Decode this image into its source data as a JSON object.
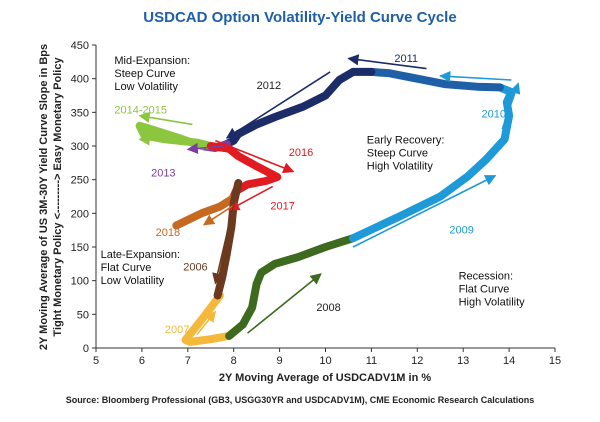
{
  "chart_data": {
    "type": "line",
    "title": "USDCAD Option Volatility-Yield Curve Cycle",
    "xlabel": "2Y Moving Average of USDCADV1M in %",
    "ylabel_line1": "2Y Moving Average of US 3M-30Y Yield Curve Slope in Bps",
    "ylabel_line2": "Tight Monetary Policy <---------> Easy Monetary Policy",
    "xlim": [
      5,
      15
    ],
    "ylim": [
      0,
      450
    ],
    "x_ticks": [
      "5",
      "6",
      "7",
      "8",
      "9",
      "10",
      "11",
      "12",
      "13",
      "14",
      "15"
    ],
    "y_ticks": [
      "0",
      "50",
      "100",
      "150",
      "200",
      "250",
      "300",
      "350",
      "400",
      "450"
    ],
    "source": "Source: Bloomberg Professional (GB3, USGG30YR and USDCADV1M), CME Economic Research Calculations",
    "series": [
      {
        "name": "2007",
        "color": "#f4b93a",
        "points": [
          [
            7.7,
            78
          ],
          [
            7.5,
            60
          ],
          [
            7.3,
            42
          ],
          [
            7.1,
            25
          ],
          [
            6.95,
            12
          ],
          [
            7.05,
            9
          ],
          [
            7.5,
            13
          ],
          [
            7.9,
            18
          ]
        ]
      },
      {
        "name": "2008",
        "color": "#3d6a1e",
        "points": [
          [
            7.9,
            18
          ],
          [
            8.2,
            35
          ],
          [
            8.4,
            60
          ],
          [
            8.5,
            95
          ],
          [
            8.6,
            112
          ],
          [
            8.9,
            125
          ],
          [
            9.4,
            135
          ],
          [
            10.0,
            150
          ],
          [
            10.6,
            163
          ]
        ]
      },
      {
        "name": "2009",
        "color": "#1e9ad8",
        "points": [
          [
            10.6,
            163
          ],
          [
            11.6,
            195
          ],
          [
            12.5,
            225
          ],
          [
            13.1,
            255
          ],
          [
            13.5,
            280
          ],
          [
            13.9,
            310
          ],
          [
            14.0,
            345
          ],
          [
            13.95,
            365
          ],
          [
            14.05,
            380
          ],
          [
            13.8,
            387
          ]
        ]
      },
      {
        "name": "2010",
        "color": "#1f5fa8",
        "points": [
          [
            13.8,
            387
          ],
          [
            13.3,
            388
          ],
          [
            12.6,
            392
          ],
          [
            12.0,
            400
          ],
          [
            11.4,
            408
          ],
          [
            11.0,
            410
          ]
        ]
      },
      {
        "name": "2011",
        "color": "#1b2c68",
        "points": [
          [
            11.0,
            410
          ],
          [
            10.6,
            410
          ],
          [
            10.3,
            398
          ],
          [
            10.0,
            375
          ],
          [
            9.5,
            358
          ],
          [
            8.9,
            343
          ],
          [
            8.5,
            332
          ],
          [
            8.3,
            325
          ],
          [
            8.1,
            318
          ]
        ]
      },
      {
        "name": "2012",
        "color": "#1b2c68",
        "points": [
          [
            8.1,
            318
          ],
          [
            8.0,
            308
          ],
          [
            7.85,
            303
          ]
        ]
      },
      {
        "name": "2013",
        "color": "#7a3fa0",
        "points": [
          [
            7.85,
            303
          ],
          [
            7.6,
            297
          ],
          [
            7.3,
            300
          ]
        ]
      },
      {
        "name": "2014-2015",
        "color": "#8cc63f",
        "points": [
          [
            7.3,
            300
          ],
          [
            6.8,
            312
          ],
          [
            6.2,
            325
          ],
          [
            5.95,
            330
          ],
          [
            6.05,
            316
          ],
          [
            6.5,
            310
          ],
          [
            7.2,
            305
          ],
          [
            7.5,
            300
          ]
        ]
      },
      {
        "name": "2016",
        "color": "#e21b23",
        "points": [
          [
            7.5,
            300
          ],
          [
            7.9,
            296
          ],
          [
            8.1,
            285
          ],
          [
            8.5,
            270
          ],
          [
            8.95,
            254
          ],
          [
            8.7,
            248
          ],
          [
            8.3,
            243
          ],
          [
            8.05,
            233
          ]
        ]
      },
      {
        "name": "2017",
        "color": "#e21b23",
        "points": [
          [
            8.05,
            233
          ],
          [
            7.98,
            222
          ]
        ]
      },
      {
        "name": "2018",
        "color": "#c66a22",
        "points": [
          [
            7.98,
            222
          ],
          [
            7.7,
            210
          ],
          [
            7.3,
            200
          ],
          [
            6.75,
            182
          ]
        ]
      },
      {
        "name": "2006",
        "color": "#6b3a1e",
        "points": [
          [
            8.1,
            245
          ],
          [
            8.0,
            215
          ],
          [
            7.95,
            180
          ],
          [
            7.85,
            140
          ],
          [
            7.75,
            105
          ],
          [
            7.65,
            78
          ]
        ]
      }
    ],
    "year_labels": [
      {
        "text": "2007",
        "x": 6.5,
        "y": 22,
        "color": "#f4b93a"
      },
      {
        "text": "2008",
        "x": 9.8,
        "y": 55,
        "color": "#222222"
      },
      {
        "text": "2009",
        "x": 12.7,
        "y": 170,
        "color": "#1e9ad8"
      },
      {
        "text": "2010",
        "x": 13.4,
        "y": 342,
        "color": "#1e9ad8"
      },
      {
        "text": "2011",
        "x": 11.5,
        "y": 425,
        "color": "#1b2c68"
      },
      {
        "text": "2012",
        "x": 8.5,
        "y": 385,
        "color": "#222222"
      },
      {
        "text": "2013",
        "x": 6.2,
        "y": 255,
        "color": "#7a3fa0"
      },
      {
        "text": "2014-2015",
        "x": 5.4,
        "y": 348,
        "color": "#8cc63f"
      },
      {
        "text": "2016",
        "x": 9.2,
        "y": 285,
        "color": "#e21b23"
      },
      {
        "text": "2017",
        "x": 8.8,
        "y": 206,
        "color": "#e21b23"
      },
      {
        "text": "2018",
        "x": 6.3,
        "y": 166,
        "color": "#c66a22"
      },
      {
        "text": "2006",
        "x": 6.9,
        "y": 115,
        "color": "#6b3a1e"
      }
    ],
    "arrows": [
      {
        "from": [
          7.2,
          20
        ],
        "to": [
          7.6,
          54
        ],
        "color": "#f4b93a"
      },
      {
        "from": [
          8.3,
          22
        ],
        "to": [
          9.9,
          110
        ],
        "color": "#3d6a1e"
      },
      {
        "from": [
          10.6,
          150
        ],
        "to": [
          13.7,
          256
        ],
        "color": "#1e9ad8"
      },
      {
        "from": [
          13.85,
          325
        ],
        "to": [
          14.2,
          393
        ],
        "color": "#1e9ad8"
      },
      {
        "from": [
          14.05,
          398
        ],
        "to": [
          12.5,
          404
        ],
        "color": "#1e9ad8"
      },
      {
        "from": [
          12.2,
          415
        ],
        "to": [
          10.5,
          430
        ],
        "color": "#1b2c68"
      },
      {
        "from": [
          10.1,
          410
        ],
        "to": [
          7.85,
          312
        ],
        "color": "#1b2c68"
      },
      {
        "from": [
          7.8,
          300
        ],
        "to": [
          7.0,
          295
        ],
        "color": "#7a3fa0"
      },
      {
        "from": [
          7.1,
          332
        ],
        "to": [
          5.95,
          345
        ],
        "color": "#8cc63f"
      },
      {
        "from": [
          7.05,
          305
        ],
        "to": [
          5.95,
          310
        ],
        "color": "#8cc63f"
      },
      {
        "from": [
          7.6,
          308
        ],
        "to": [
          9.3,
          262
        ],
        "color": "#e21b23"
      },
      {
        "from": [
          8.85,
          240
        ],
        "to": [
          7.9,
          205
        ],
        "color": "#e21b23"
      },
      {
        "from": [
          8.0,
          212
        ],
        "to": [
          7.35,
          183
        ],
        "color": "#c66a22"
      },
      {
        "from": [
          8.1,
          242
        ],
        "to": [
          7.6,
          96
        ],
        "color": "#6b3a1e"
      }
    ],
    "annotations": [
      {
        "x": 5.4,
        "y": 422,
        "lines": [
          "Mid-Expansion:",
          "Steep Curve",
          "Low Volatility"
        ]
      },
      {
        "x": 10.9,
        "y": 304,
        "lines": [
          "Early Recovery:",
          "Steep Curve",
          "High Volatility"
        ]
      },
      {
        "x": 5.1,
        "y": 134,
        "lines": [
          "Late-Expansion:",
          "Flat Curve",
          "Low Volatility"
        ]
      },
      {
        "x": 12.9,
        "y": 102,
        "lines": [
          "Recession:",
          "Flat Curve",
          "High Volatility"
        ]
      }
    ]
  }
}
